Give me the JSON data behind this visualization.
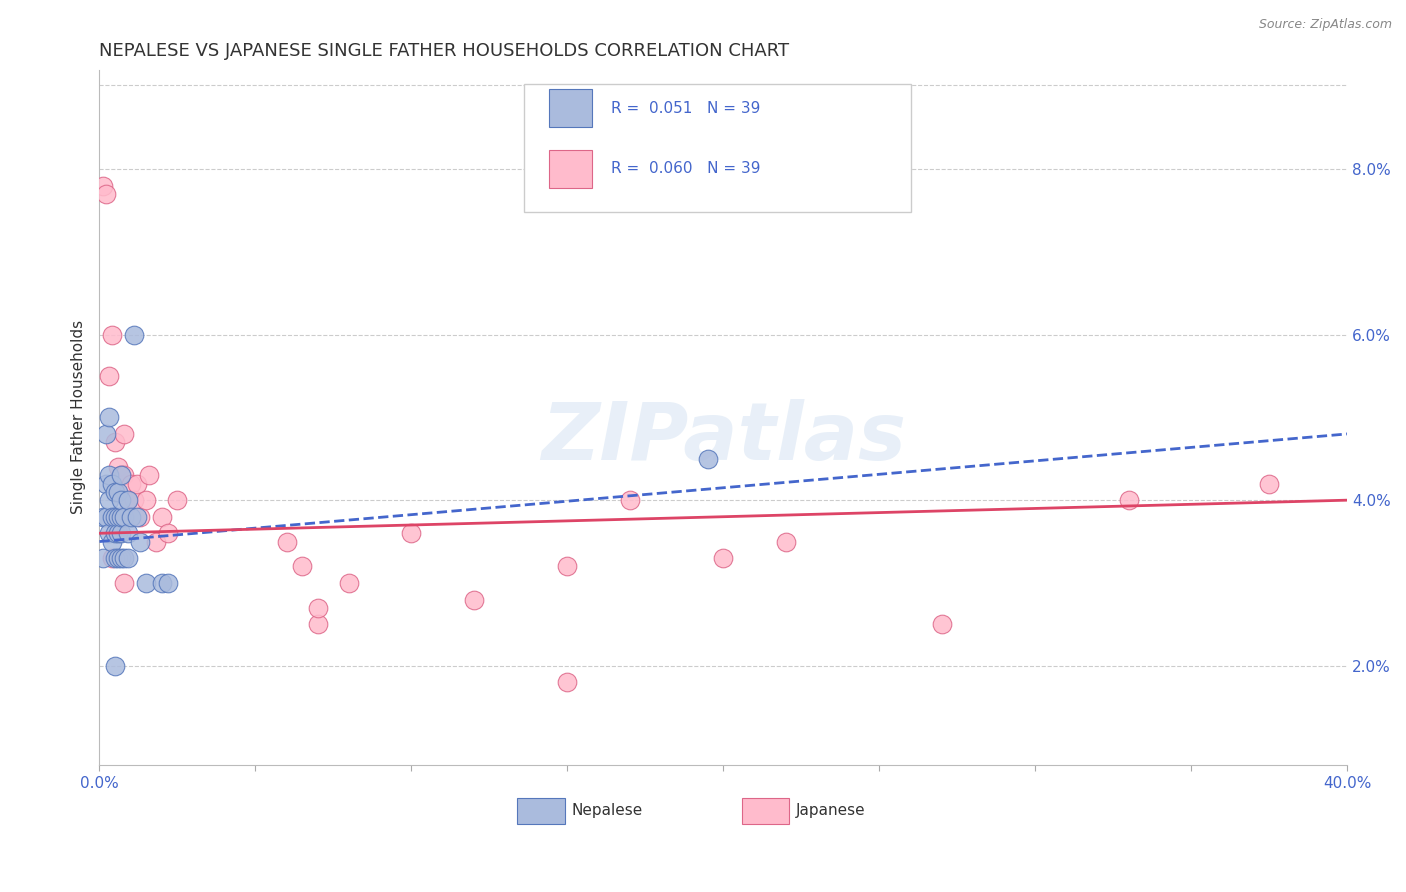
{
  "title": "NEPALESE VS JAPANESE SINGLE FATHER HOUSEHOLDS CORRELATION CHART",
  "source": "Source: ZipAtlas.com",
  "ylabel": "Single Father Households",
  "xlim": [
    0,
    0.4
  ],
  "ylim": [
    0.008,
    0.092
  ],
  "xticks": [
    0.0,
    0.05,
    0.1,
    0.15,
    0.2,
    0.25,
    0.3,
    0.35,
    0.4
  ],
  "xtick_labels_show": [
    "0.0%",
    "",
    "",
    "",
    "",
    "",
    "",
    "",
    "40.0%"
  ],
  "yticks_right": [
    0.02,
    0.04,
    0.06,
    0.08
  ],
  "ytick_labels_right": [
    "2.0%",
    "4.0%",
    "6.0%",
    "8.0%"
  ],
  "nepalese_x": [
    0.001,
    0.001,
    0.002,
    0.002,
    0.002,
    0.003,
    0.003,
    0.003,
    0.003,
    0.004,
    0.004,
    0.004,
    0.005,
    0.005,
    0.005,
    0.005,
    0.006,
    0.006,
    0.006,
    0.006,
    0.007,
    0.007,
    0.007,
    0.007,
    0.007,
    0.008,
    0.008,
    0.009,
    0.009,
    0.009,
    0.01,
    0.011,
    0.012,
    0.013,
    0.015,
    0.02,
    0.022,
    0.195,
    0.005
  ],
  "nepalese_y": [
    0.033,
    0.038,
    0.038,
    0.042,
    0.048,
    0.036,
    0.04,
    0.043,
    0.05,
    0.035,
    0.038,
    0.042,
    0.033,
    0.036,
    0.038,
    0.041,
    0.033,
    0.036,
    0.038,
    0.041,
    0.033,
    0.036,
    0.038,
    0.04,
    0.043,
    0.033,
    0.038,
    0.033,
    0.036,
    0.04,
    0.038,
    0.06,
    0.038,
    0.035,
    0.03,
    0.03,
    0.03,
    0.045,
    0.02
  ],
  "japanese_x": [
    0.001,
    0.002,
    0.003,
    0.004,
    0.005,
    0.006,
    0.007,
    0.007,
    0.008,
    0.008,
    0.009,
    0.01,
    0.011,
    0.012,
    0.013,
    0.015,
    0.016,
    0.018,
    0.02,
    0.022,
    0.025,
    0.06,
    0.065,
    0.07,
    0.08,
    0.1,
    0.12,
    0.15,
    0.17,
    0.2,
    0.22,
    0.27,
    0.33,
    0.375,
    0.004,
    0.006,
    0.008,
    0.07,
    0.15
  ],
  "japanese_y": [
    0.078,
    0.077,
    0.055,
    0.06,
    0.047,
    0.044,
    0.038,
    0.043,
    0.043,
    0.048,
    0.04,
    0.042,
    0.04,
    0.042,
    0.038,
    0.04,
    0.043,
    0.035,
    0.038,
    0.036,
    0.04,
    0.035,
    0.032,
    0.025,
    0.03,
    0.036,
    0.028,
    0.032,
    0.04,
    0.033,
    0.035,
    0.025,
    0.04,
    0.042,
    0.033,
    0.036,
    0.03,
    0.027,
    0.018
  ],
  "nepalese_color": "#aabbdd",
  "japanese_color": "#ffbbcc",
  "nepalese_edge_color": "#5577bb",
  "japanese_edge_color": "#dd6688",
  "trend_nepalese_color": "#4466cc",
  "trend_japanese_color": "#dd4466",
  "legend_r_nepalese": "R =  0.051",
  "legend_n_nepalese": "N = 39",
  "legend_r_japanese": "R =  0.060",
  "legend_n_japanese": "N = 39",
  "watermark": "ZIPatlas",
  "background_color": "#ffffff",
  "grid_color": "#cccccc",
  "axis_label_color": "#4466cc",
  "title_color": "#333333",
  "title_fontsize": 13,
  "label_fontsize": 11,
  "tick_fontsize": 11,
  "source_color": "#888888",
  "trend_nep_x0": 0.0,
  "trend_nep_y0": 0.035,
  "trend_nep_x1": 0.4,
  "trend_nep_y1": 0.048,
  "trend_jap_x0": 0.0,
  "trend_jap_y0": 0.036,
  "trend_jap_x1": 0.4,
  "trend_jap_y1": 0.04
}
